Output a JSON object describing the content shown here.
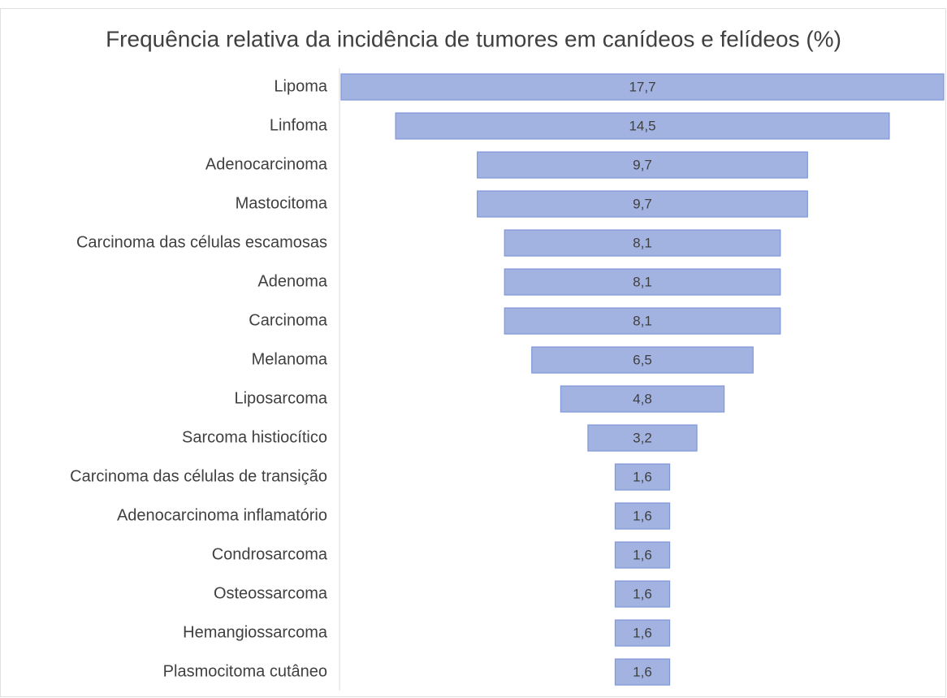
{
  "chart_data": {
    "type": "funnel",
    "title": "Frequência relativa da incidência de tumores em canídeos e felídeos (%)",
    "categories": [
      "Lipoma",
      "Linfoma",
      "Adenocarcinoma",
      "Mastocitoma",
      "Carcinoma das células escamosas",
      "Adenoma",
      "Carcinoma",
      "Melanoma",
      "Liposarcoma",
      "Sarcoma histiocítico",
      "Carcinoma das células de transição",
      "Adenocarcinoma inflamatório",
      "Condrosarcoma",
      "Osteossarcoma",
      "Hemangiossarcoma",
      "Plasmocitoma cutâneo"
    ],
    "values": [
      17.7,
      14.5,
      9.7,
      9.7,
      8.1,
      8.1,
      8.1,
      6.5,
      4.8,
      3.2,
      1.6,
      1.6,
      1.6,
      1.6,
      1.6,
      1.6
    ],
    "value_labels": [
      "17,7",
      "14,5",
      "9,7",
      "9,7",
      "8,1",
      "8,1",
      "8,1",
      "6,5",
      "4,8",
      "3,2",
      "1,6",
      "1,6",
      "1,6",
      "1,6",
      "1,6",
      "1,6"
    ],
    "color": "#a3b3e1"
  }
}
